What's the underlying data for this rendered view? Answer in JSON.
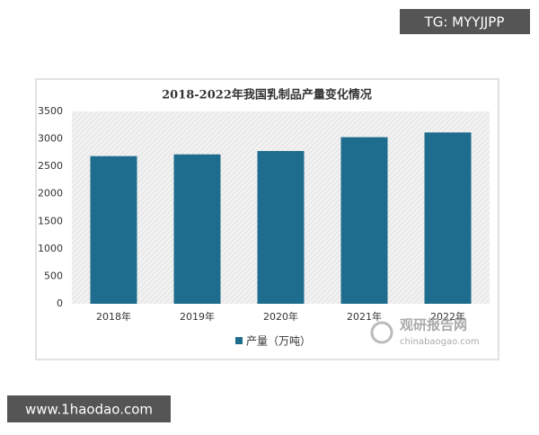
{
  "chart_data": {
    "type": "bar",
    "title": "2018-2022年我国乳制品产量变化情况",
    "categories": [
      "2018年",
      "2019年",
      "2020年",
      "2021年",
      "2022年"
    ],
    "series": [
      {
        "name": "产量（万吨）",
        "color": "#1f6d8e",
        "values": [
          2687,
          2719,
          2780,
          3032,
          3118
        ]
      }
    ],
    "ylim": [
      0,
      3500
    ],
    "yticks": [
      0,
      500,
      1000,
      1500,
      2000,
      2500,
      3000,
      3500
    ],
    "grid": false,
    "legend": "bottom"
  },
  "watermarks": {
    "telegram": "TG: MYYJJPP",
    "site": "www.1haodao.com",
    "logo_title": "观研报告网",
    "logo_url": "chinabaogao.com"
  }
}
